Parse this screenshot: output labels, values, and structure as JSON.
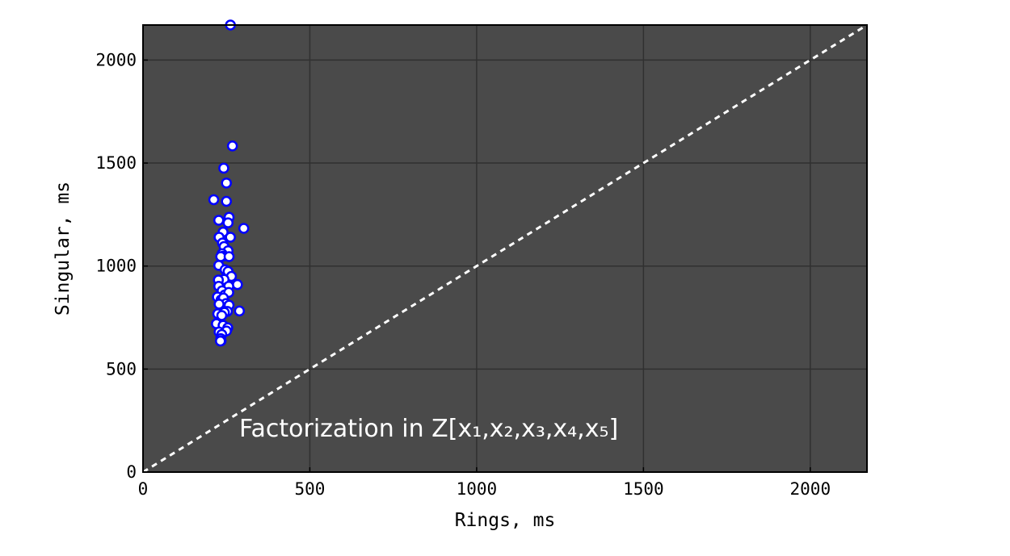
{
  "chart_data": {
    "type": "scatter",
    "title": "",
    "xlabel": "Rings, ms",
    "ylabel": "Singular, ms",
    "xlim": [
      0,
      2170
    ],
    "ylim": [
      0,
      2170
    ],
    "xticks": [
      "0",
      "500",
      "1000",
      "1500",
      "2000"
    ],
    "yticks": [
      "0",
      "500",
      "1000",
      "1500",
      "2000"
    ],
    "grid": true,
    "annotation": "Factorization in Z[x₁,x₂,x₃,x₄,x₅]",
    "diagonal": {
      "from": [
        0,
        0
      ],
      "to": [
        2170,
        2170
      ],
      "style": "dashed"
    },
    "colors": {
      "plot_background": "#4a4a4a",
      "grid": "#303030",
      "marker_fill": "#ffffff",
      "marker_edge": "#0000ff",
      "diagonal": "#ffffff"
    },
    "x": [
      262,
      268,
      242,
      250,
      212,
      250,
      302,
      258,
      227,
      255,
      240,
      262,
      228,
      238,
      243,
      255,
      237,
      240,
      233,
      258,
      227,
      246,
      255,
      265,
      243,
      226,
      283,
      257,
      227,
      237,
      245,
      223,
      234,
      257,
      241,
      249,
      228,
      258,
      253,
      244,
      289,
      224,
      236,
      220,
      240,
      254,
      250,
      228,
      236,
      233,
      234,
      232
    ],
    "y": [
      2170,
      1583,
      1475,
      1403,
      1322,
      1314,
      1183,
      1237,
      1222,
      1210,
      1165,
      1140,
      1140,
      1112,
      1095,
      1074,
      1060,
      1048,
      1046,
      1046,
      1003,
      982,
      974,
      950,
      935,
      932,
      910,
      902,
      902,
      880,
      860,
      850,
      836,
      872,
      845,
      818,
      815,
      810,
      780,
      775,
      782,
      768,
      760,
      720,
      712,
      700,
      685,
      680,
      668,
      648,
      637,
      636
    ]
  }
}
